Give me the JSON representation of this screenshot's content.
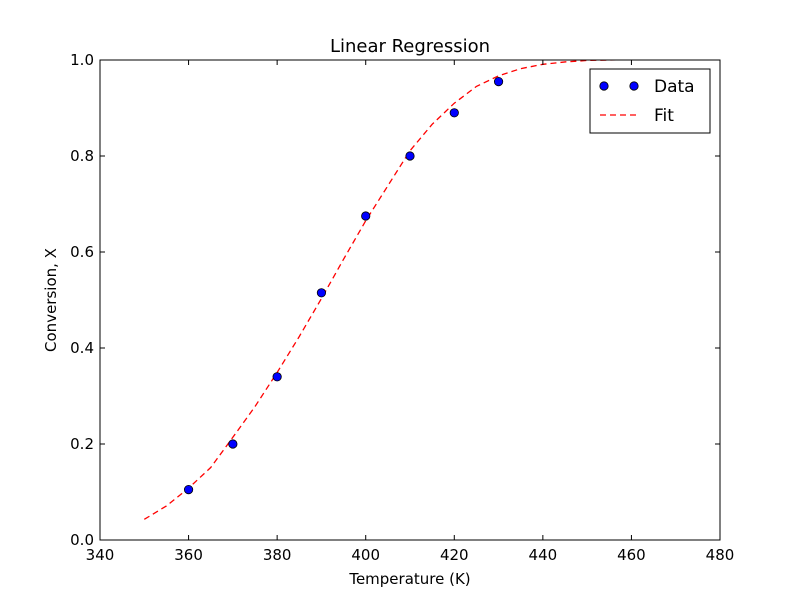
{
  "chart_data": {
    "type": "scatter",
    "title": "Linear Regression",
    "xlabel": "Temperature (K)",
    "ylabel": "Conversion, X",
    "xlim": [
      340,
      480
    ],
    "ylim": [
      0.0,
      1.0
    ],
    "xticks": [
      340,
      360,
      380,
      400,
      420,
      440,
      460,
      480
    ],
    "yticks": [
      0.0,
      0.2,
      0.4,
      0.6,
      0.8,
      1.0
    ],
    "xtick_labels": [
      "340",
      "360",
      "380",
      "400",
      "420",
      "440",
      "460",
      "480"
    ],
    "ytick_labels": [
      "0.0",
      "0.2",
      "0.4",
      "0.6",
      "0.8",
      "1.0"
    ],
    "grid": false,
    "legend": {
      "position": "top-right"
    },
    "series": [
      {
        "name": "Data",
        "kind": "points",
        "color": "#0000ff",
        "x": [
          360,
          370,
          380,
          390,
          400,
          410,
          420,
          430
        ],
        "y": [
          0.105,
          0.2,
          0.34,
          0.515,
          0.675,
          0.8,
          0.89,
          0.955
        ]
      },
      {
        "name": "Fit",
        "kind": "dashed-line",
        "color": "#ff0000",
        "x": [
          350,
          355,
          360,
          365,
          370,
          375,
          380,
          385,
          390,
          395,
          400,
          405,
          410,
          415,
          420,
          425,
          430,
          435,
          440,
          445,
          450,
          455,
          460
        ],
        "y": [
          0.043,
          0.071,
          0.108,
          0.151,
          0.214,
          0.278,
          0.349,
          0.424,
          0.503,
          0.585,
          0.665,
          0.738,
          0.811,
          0.866,
          0.91,
          0.945,
          0.967,
          0.982,
          0.991,
          0.996,
          0.999,
          1.0,
          1.001
        ]
      }
    ]
  }
}
